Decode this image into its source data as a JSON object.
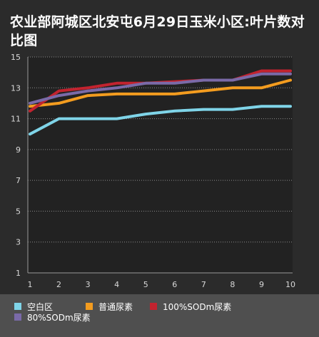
{
  "chart_data": {
    "type": "line",
    "title": "农业部阿城区北安屯6月29日玉米小区:叶片数对比图",
    "categories": [
      "1",
      "2",
      "3",
      "4",
      "5",
      "6",
      "7",
      "8",
      "9",
      "10"
    ],
    "ylim": [
      1,
      15
    ],
    "yticks": [
      1,
      3,
      5,
      7,
      9,
      11,
      13,
      15
    ],
    "grid": true,
    "legend_position": "bottom",
    "series": [
      {
        "name": "空白区",
        "color": "#7fd4e8",
        "values": [
          10.0,
          11.0,
          11.0,
          11.0,
          11.3,
          11.5,
          11.6,
          11.6,
          11.8,
          11.8
        ]
      },
      {
        "name": "普通尿素",
        "color": "#f39c1f",
        "values": [
          11.8,
          12.0,
          12.5,
          12.6,
          12.6,
          12.6,
          12.8,
          13.0,
          13.0,
          13.5
        ]
      },
      {
        "name": "100%SODm尿素",
        "color": "#c2232f",
        "values": [
          11.5,
          12.8,
          13.0,
          13.3,
          13.3,
          13.4,
          13.5,
          13.5,
          14.1,
          14.1
        ]
      },
      {
        "name": "80%SODm尿素",
        "color": "#7a6aa8",
        "values": [
          12.0,
          12.5,
          12.8,
          13.0,
          13.3,
          13.3,
          13.5,
          13.5,
          13.9,
          13.9
        ]
      }
    ]
  }
}
